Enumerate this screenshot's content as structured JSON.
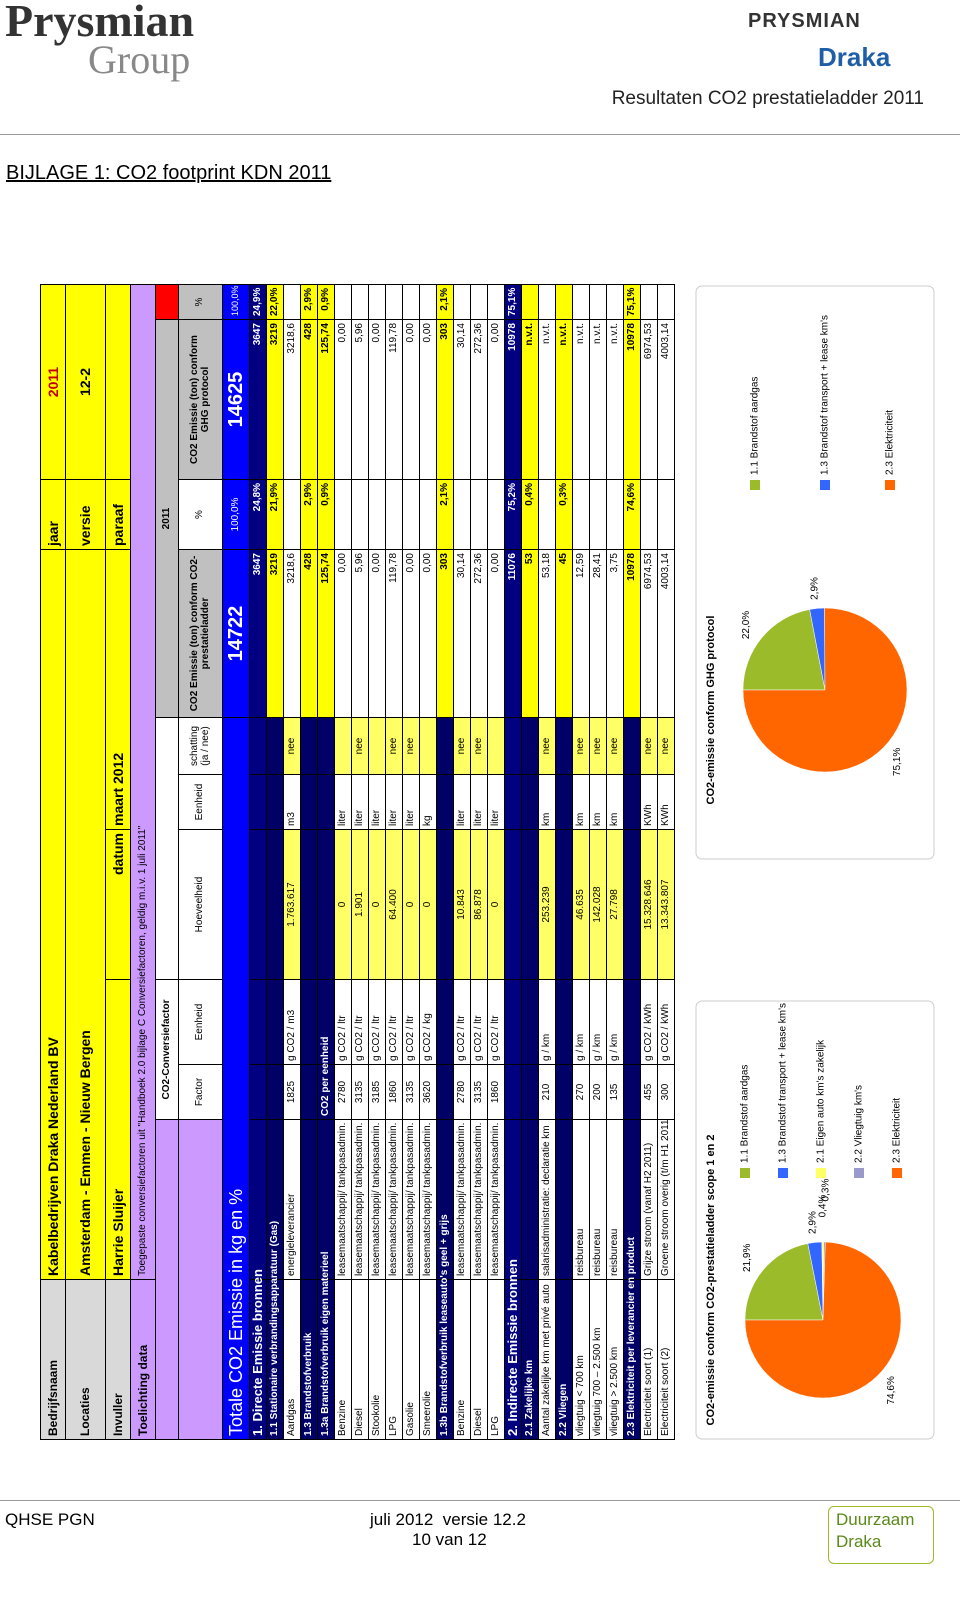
{
  "header": {
    "logo_left": "Prysmian",
    "logo_left_sub": "Group",
    "logo_right_1": "PRYSMIAN",
    "logo_right_2": "Draka",
    "title": "Resultaten CO2 prestatieladder 2011"
  },
  "heading": "BIJLAGE 1: CO2 footprint KDN 2011",
  "table": {
    "bedrijfsnaam": {
      "label": "Bedrijfsnaam",
      "value": "Kabelbedrijven Draka Nederland BV",
      "jaar_label": "jaar",
      "jaar": "2011"
    },
    "locaties": {
      "label": "Locaties",
      "value": "Amsterdam - Emmen - Nieuw Bergen",
      "versie_label": "versie",
      "versie": "12-2"
    },
    "invuller": {
      "label": "Invuller",
      "value": "Harrie Sluijer",
      "datum_label": "datum",
      "datum": "maart 2012",
      "paraaf_label": "paraaf"
    },
    "toelichting": {
      "label": "Toelichting data",
      "value": "Toegepaste conversiefactoren uit \"Handboek 2.0 bijlage C Conversiefactoren, geldig m.i.v. 1 juli 2011\""
    },
    "group_headers": {
      "conversion": "CO2-Conversiefactor",
      "year": "2011"
    },
    "columns": [
      "Factor",
      "Eenheid",
      "Hoeveelheid",
      "Eenheid",
      "schatting (ja / nee)",
      "CO2 Emissie (ton) conform CO2-prestatieladder",
      "%",
      "CO2 Emissie (ton) conform GHG protocol",
      "%"
    ],
    "total": {
      "label": "Totale CO2 Emissie in kg en %",
      "ladder": "14722",
      "ladder_pct": "100,0%",
      "ghg": "14625",
      "ghg_pct": "100,0%"
    },
    "rows": [
      [
        "1. Directe Emissie bronnen",
        null,
        null,
        null,
        null,
        null,
        null,
        "3647",
        "24,8%",
        "3647",
        "24,9%"
      ],
      [
        "1.1 Stationaire verbrandingsapparatuur (Gas)",
        null,
        null,
        null,
        null,
        null,
        null,
        "3219",
        "21,9%",
        "3219",
        "22,0%"
      ],
      [
        "Aardgas",
        "energieleverancier",
        "1825",
        "g CO2 / m3",
        "1.763.617",
        "m3",
        "nee",
        "3218,6",
        null,
        "3218,6",
        null
      ],
      [
        "1.3 Brandstofverbruik",
        null,
        null,
        null,
        null,
        null,
        null,
        "428",
        "2,9%",
        "428",
        "2,9%"
      ],
      [
        "1.3a Brandstofverbruik eigen materieel",
        null,
        "CO2 per eenheid",
        null,
        null,
        null,
        null,
        "125,74",
        "0,9%",
        "125,74",
        "0,9%"
      ],
      [
        "Benzine",
        "leasemaatschappij/ tankpasadmin.",
        "2780",
        "g CO2 / ltr",
        "0",
        "liter",
        null,
        "0,00",
        null,
        "0,00",
        null
      ],
      [
        "Diesel",
        "leasemaatschappij/ tankpasadmin.",
        "3135",
        "g CO2 / ltr",
        "1.901",
        "liter",
        "nee",
        "5,96",
        null,
        "5,96",
        null
      ],
      [
        "Stookolie",
        "leasemaatschappij/ tankpasadmin.",
        "3185",
        "g CO2 / ltr",
        "0",
        "liter",
        null,
        "0,00",
        null,
        "0,00",
        null
      ],
      [
        "LPG",
        "leasemaatschappij/ tankpasadmin.",
        "1860",
        "g CO2 / ltr",
        "64.400",
        "liter",
        "nee",
        "119,78",
        null,
        "119,78",
        null
      ],
      [
        "Gasolie",
        "leasemaatschappij/ tankpasadmin.",
        "3135",
        "g CO2 / ltr",
        "0",
        "liter",
        "nee",
        "0,00",
        null,
        "0,00",
        null
      ],
      [
        "Smeerolie",
        "leasemaatschappij/ tankpasadmin.",
        "3620",
        "g CO2 / kg",
        "0",
        "kg",
        null,
        "0,00",
        null,
        "0,00",
        null
      ],
      [
        "1.3b Brandstofverbruik leaseauto's geel + grijs",
        null,
        null,
        null,
        null,
        null,
        null,
        "303",
        "2,1%",
        "303",
        "2,1%"
      ],
      [
        "Benzine",
        "leasemaatschappij/ tankpasadmin.",
        "2780",
        "g CO2 / ltr",
        "10.843",
        "liter",
        "nee",
        "30,14",
        null,
        "30,14",
        null
      ],
      [
        "Diesel",
        "leasemaatschappij/ tankpasadmin.",
        "3135",
        "g CO2 / ltr",
        "86.878",
        "liter",
        "nee",
        "272,36",
        null,
        "272,36",
        null
      ],
      [
        "LPG",
        "leasemaatschappij/ tankpasadmin.",
        "1860",
        "g CO2 / ltr",
        "0",
        "liter",
        null,
        "0,00",
        null,
        "0,00",
        null
      ],
      [
        "2. Indirecte Emissie bronnen",
        null,
        null,
        null,
        null,
        null,
        null,
        "11076",
        "75,2%",
        "10978",
        "75,1%"
      ],
      [
        "2.1 Zakelijke km",
        null,
        null,
        null,
        null,
        null,
        null,
        "53",
        "0,4%",
        "n.v.t.",
        null
      ],
      [
        "Aantal zakelijke km met privé auto",
        "salarisadministratie: declaratie km",
        "210",
        "g / km",
        "253.239",
        "km",
        "nee",
        "53,18",
        null,
        "n.v.t.",
        null
      ],
      [
        "2.2 Vliegen",
        null,
        null,
        null,
        null,
        null,
        null,
        "45",
        "0,3%",
        "n.v.t.",
        null
      ],
      [
        "vliegtuig < 700 km",
        "reisbureau",
        "270",
        "g / km",
        "46.635",
        "km",
        "nee",
        "12,59",
        null,
        "n.v.t.",
        null
      ],
      [
        "vliegtuig 700 – 2.500 km",
        "reisbureau",
        "200",
        "g / km",
        "142.028",
        "km",
        "nee",
        "28,41",
        null,
        "n.v.t.",
        null
      ],
      [
        "vliegtuig > 2.500 km",
        "reisbureau",
        "135",
        "g / km",
        "27.798",
        "km",
        "nee",
        "3,75",
        null,
        "n.v.t.",
        null
      ],
      [
        "2.3 Elektriciteit per leverancier en product",
        null,
        null,
        null,
        null,
        null,
        null,
        "10978",
        "74,6%",
        "10978",
        "75,1%"
      ],
      [
        "Electriciteit soort (1)",
        "Grijze stroom (vanaf H2 2011)",
        "455",
        "g CO2 / kWh",
        "15.328.646",
        "KWh",
        "nee",
        "6974,53",
        null,
        "6974,53",
        null
      ],
      [
        "Electriciteit soort (2)",
        "Groene stroom overig (t/m H1 2011)",
        "300",
        "g CO2 / kWh",
        "13.343.807",
        "KWh",
        "nee",
        "4003,14",
        null,
        "4003,14",
        null
      ]
    ]
  },
  "chart_data": [
    {
      "type": "pie",
      "title": "CO2-emissie conform CO2-prestatieladder scope 1 en 2",
      "categories": [
        "1.1 Brandstof aardgas",
        "1.3 Brandstof transport + lease km's",
        "2.1 Eigen auto km's zakelijk",
        "2.2 Vliegtuig km's",
        "2.3 Elektriciteit"
      ],
      "values": [
        21.9,
        2.9,
        0.4,
        0.3,
        74.6
      ],
      "value_labels": [
        "21,9%",
        "2,9%",
        "0,4%",
        "0,3%",
        "74,6%"
      ],
      "colors": [
        "#9bbb2a",
        "#3366ff",
        "#ffff66",
        "#9999cc",
        "#ff6600"
      ]
    },
    {
      "type": "pie",
      "title": "CO2-emissie conform GHG protocol",
      "categories": [
        "1.1 Brandstof aardgas",
        "1.3 Brandstof transport + lease km's",
        "2.3 Elektriciteit"
      ],
      "values": [
        22.0,
        2.9,
        75.1
      ],
      "value_labels": [
        "22,0%",
        "2,9%",
        "75,1%"
      ],
      "colors": [
        "#9bbb2a",
        "#3366ff",
        "#ff6600"
      ]
    }
  ],
  "footer": {
    "left": "QHSE PGN",
    "center": "juli 2012  versie 12.2",
    "page": "10 van 12",
    "logo": "Duurzaam",
    "logo_sub": "Draka"
  }
}
